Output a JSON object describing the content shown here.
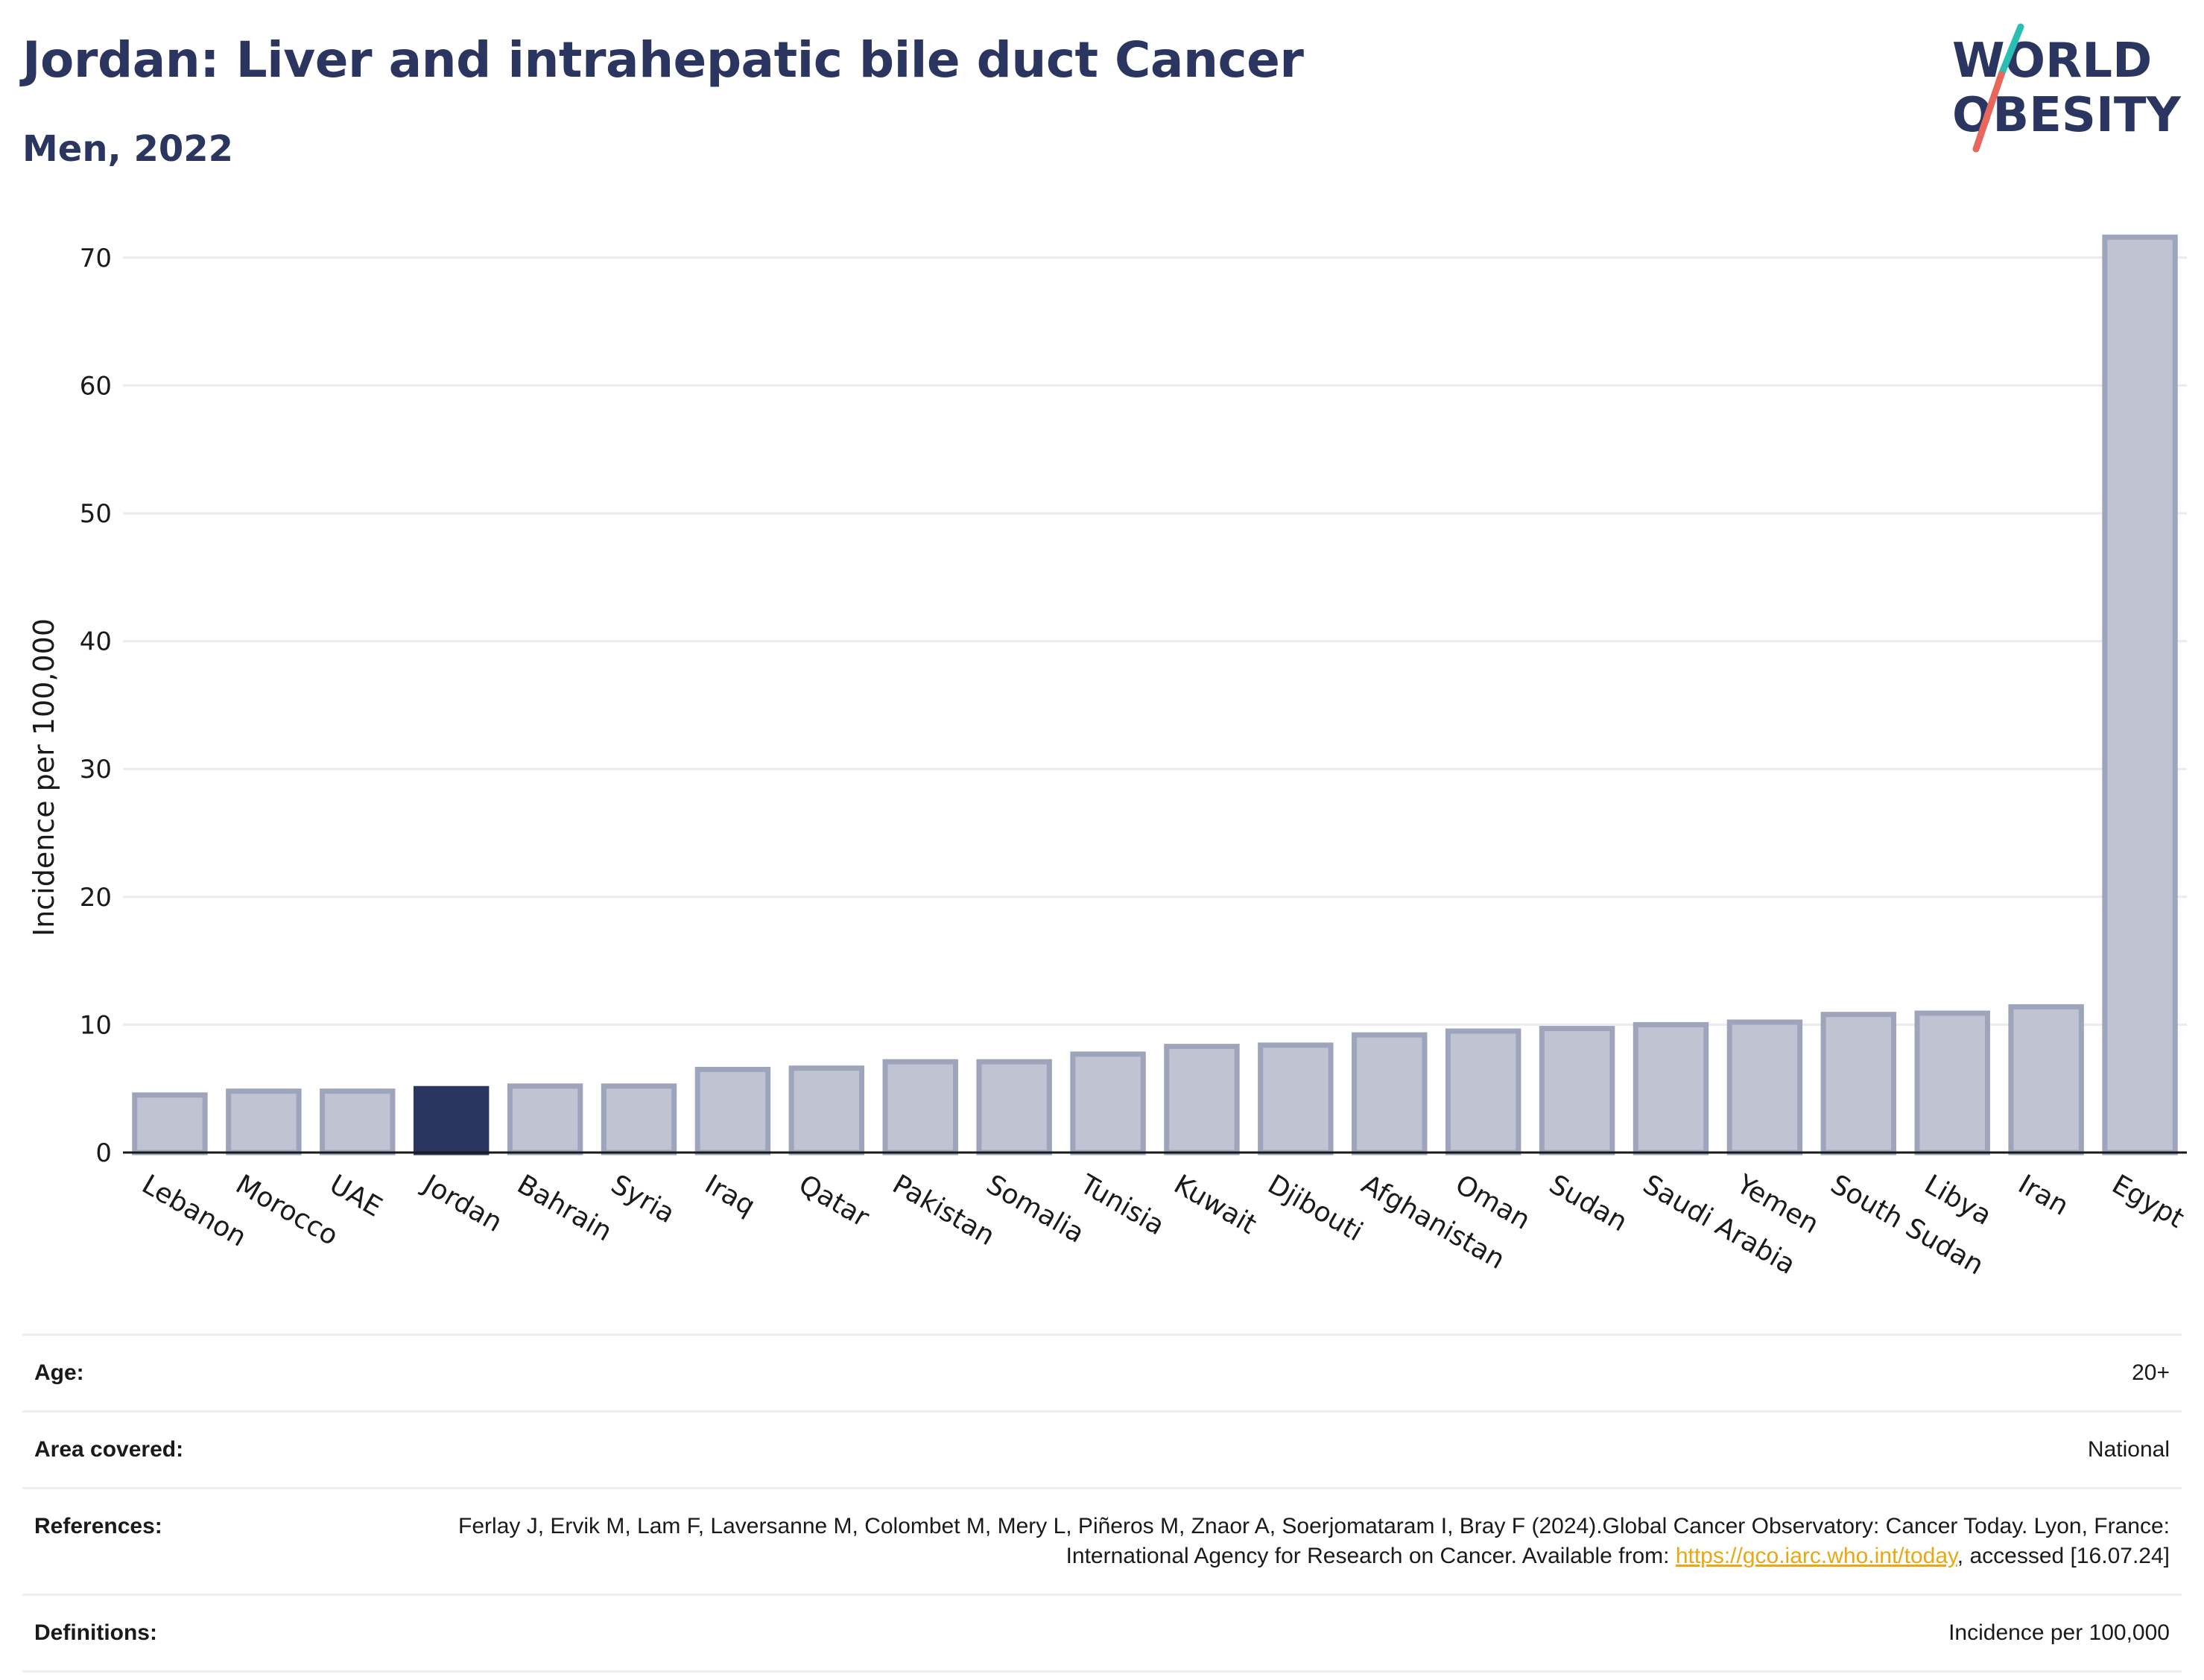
{
  "header": {
    "title": "Jordan: Liver and intrahepatic bile duct Cancer",
    "subtitle": "Men, 2022"
  },
  "logo": {
    "line1": "WORLD",
    "line2": "OBESITY",
    "slash_colors": [
      "#2bbfb3",
      "#e8675c"
    ],
    "text_color": "#2b3660"
  },
  "colors": {
    "highlight_bar": "#2b3660",
    "other_bar_fill": "#c0c3d1",
    "other_bar_stroke": "#9fa4bd",
    "gridline": "#eaebf1",
    "axis": "#1a1a1a"
  },
  "chart_data": {
    "type": "bar",
    "ylabel": "Incidence per 100,000",
    "xlabel": "",
    "ylim": [
      0,
      75
    ],
    "yticks": [
      0,
      10,
      20,
      30,
      40,
      50,
      60,
      70
    ],
    "grid": true,
    "highlight": "Jordan",
    "categories": [
      "Lebanon",
      "Morocco",
      "UAE",
      "Jordan",
      "Bahrain",
      "Syria",
      "Iraq",
      "Qatar",
      "Pakistan",
      "Somalia",
      "Tunisia",
      "Kuwait",
      "Djibouti",
      "Afghanistan",
      "Oman",
      "Sudan",
      "Saudi Arabia",
      "Yemen",
      "South Sudan",
      "Libya",
      "Iran",
      "Egypt"
    ],
    "values": [
      4.5,
      4.8,
      4.8,
      5.0,
      5.2,
      5.2,
      6.5,
      6.6,
      7.1,
      7.1,
      7.7,
      8.3,
      8.4,
      9.2,
      9.5,
      9.7,
      10.0,
      10.2,
      10.8,
      10.9,
      11.4,
      71.6
    ]
  },
  "meta": {
    "age_label": "Age:",
    "age_value": "20+",
    "area_label": "Area covered:",
    "area_value": "National",
    "references_label": "References:",
    "references_text_1": "Ferlay J, Ervik M, Lam F, Laversanne M, Colombet M, Mery L, Piñeros M, Znaor A, Soerjomataram I, Bray F (2024).Global Cancer Observatory: Cancer Today. Lyon, France: International Agency for Research on Cancer. Available from: ",
    "references_link": "https://gco.iarc.who.int/today",
    "references_text_2": ", accessed [16.07.24]",
    "definitions_label": "Definitions:",
    "definitions_value": "Incidence per 100,000"
  }
}
